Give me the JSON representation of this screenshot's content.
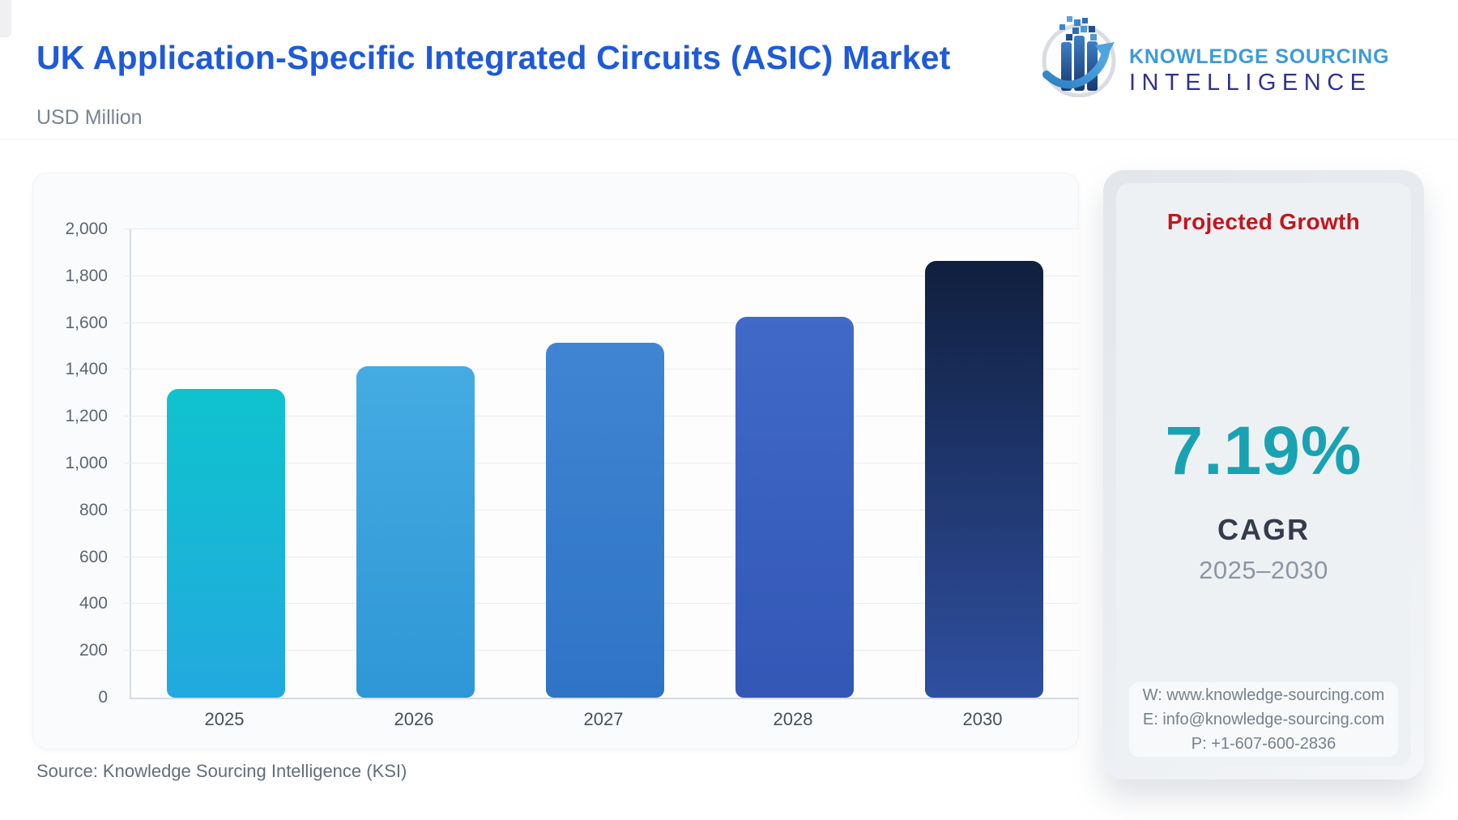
{
  "header": {
    "title": "UK Application-Specific Integrated Circuits (ASIC) Market",
    "subtitle": "USD Million"
  },
  "logo": {
    "line1": "KNOWLEDGE SOURCING",
    "line2": "INTELLIGENCE"
  },
  "chart_data": {
    "type": "bar",
    "title": "UK Application-Specific Integrated Circuits (ASIC) Market",
    "unit": "USD Million",
    "categories": [
      "2025",
      "2026",
      "2027",
      "2028",
      "2030"
    ],
    "values": [
      1320,
      1415,
      1515,
      1625,
      1865
    ],
    "xlabel": "",
    "ylabel": "USD Million",
    "ylim": [
      0,
      2000
    ],
    "ytick_step": 200,
    "yticks": [
      "0",
      "200",
      "400",
      "600",
      "800",
      "1,000",
      "1,200",
      "1,400",
      "1,600",
      "1,800",
      "2,000"
    ],
    "grid": true,
    "legend": "none",
    "bar_colors": [
      [
        "#0fc3ce",
        "#22a9de"
      ],
      [
        "#45abe2",
        "#2f97d6"
      ],
      [
        "#3f85d2",
        "#2f74c6"
      ],
      [
        "#4069c8",
        "#3357b6"
      ],
      [
        "#101f3e",
        "#2f4fa0"
      ]
    ]
  },
  "growth_panel": {
    "title": "Projected Growth",
    "value": "7.19%",
    "label": "CAGR",
    "period": "2025–2030",
    "contact": {
      "website": "W: www.knowledge-sourcing.com",
      "email": "E: info@knowledge-sourcing.com",
      "phone": "P: +1-607-600-2836"
    }
  },
  "footer": {
    "source": "Source: Knowledge Sourcing Intelligence (KSI)"
  },
  "colors": {
    "title_blue": "#1e5ad9",
    "logo_light_blue": "#3e9bd6",
    "logo_dark_blue": "#2e3192",
    "growth_red": "#c3161c",
    "cagr_teal": "#19a2b2",
    "axis_gray": "#d6dae0",
    "grid_gray": "#e9ecf0"
  }
}
